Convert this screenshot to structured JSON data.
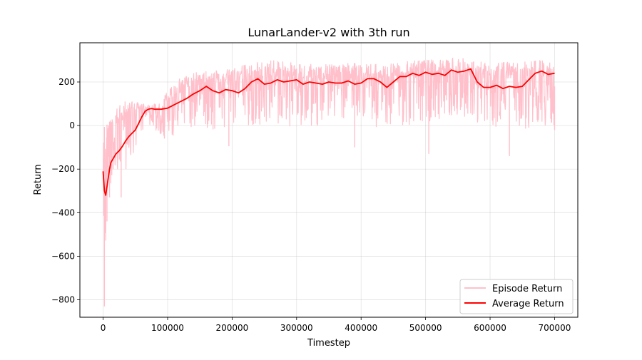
{
  "chart_data": {
    "type": "line",
    "title": "LunarLander-v2 with 3th run",
    "xlabel": "Timestep",
    "ylabel": "Return",
    "xlim": [
      -36000,
      736000
    ],
    "ylim": [
      -880,
      380
    ],
    "xticks": [
      0,
      100000,
      200000,
      300000,
      400000,
      500000,
      600000,
      700000
    ],
    "xtick_labels": [
      "0",
      "100000",
      "200000",
      "300000",
      "400000",
      "500000",
      "600000",
      "700000"
    ],
    "yticks": [
      -800,
      -600,
      -400,
      -200,
      0,
      200
    ],
    "ytick_labels": [
      "−800",
      "−600",
      "−400",
      "−200",
      "0",
      "200"
    ],
    "grid": true,
    "legend_position": "lower-right",
    "colors": {
      "episode": "#ffc0cb",
      "average": "#ff0000"
    },
    "series": [
      {
        "name": "Episode Return",
        "style": "noisy band",
        "envelope": {
          "x": [
            0,
            2000,
            5000,
            8000,
            12000,
            20000,
            30000,
            40000,
            50000,
            60000,
            75000,
            90000,
            100000,
            120000,
            150000,
            170000,
            200000,
            230000,
            260000,
            300000,
            350000,
            400000,
            440000,
            480000,
            520000,
            560000,
            600000,
            640000,
            680000,
            700000
          ],
          "upper": [
            -50,
            -10,
            0,
            20,
            40,
            80,
            100,
            130,
            110,
            100,
            95,
            110,
            160,
            220,
            250,
            250,
            260,
            290,
            300,
            290,
            280,
            290,
            280,
            300,
            310,
            310,
            300,
            290,
            300,
            300
          ],
          "lower": [
            -830,
            -700,
            -480,
            -330,
            -280,
            -250,
            -220,
            -200,
            -100,
            -30,
            0,
            -50,
            -60,
            -30,
            0,
            -20,
            0,
            0,
            -10,
            0,
            0,
            0,
            -10,
            0,
            20,
            0,
            0,
            -20,
            0,
            0
          ]
        },
        "spikes_down": [
          [
            2000,
            -830
          ],
          [
            6000,
            -440
          ],
          [
            10000,
            -330
          ],
          [
            28000,
            -330
          ],
          [
            95000,
            -60
          ],
          [
            195000,
            -95
          ],
          [
            390000,
            -100
          ],
          [
            505000,
            -130
          ],
          [
            630000,
            -140
          ],
          [
            700000,
            -20
          ]
        ]
      },
      {
        "name": "Average Return",
        "x": [
          0,
          2000,
          4000,
          6000,
          8000,
          10000,
          12000,
          14000,
          16000,
          20000,
          25000,
          30000,
          35000,
          40000,
          45000,
          50000,
          55000,
          60000,
          65000,
          70000,
          75000,
          80000,
          90000,
          100000,
          110000,
          120000,
          130000,
          140000,
          150000,
          160000,
          170000,
          180000,
          190000,
          200000,
          210000,
          220000,
          230000,
          240000,
          250000,
          260000,
          270000,
          280000,
          290000,
          300000,
          310000,
          320000,
          330000,
          340000,
          350000,
          360000,
          370000,
          380000,
          390000,
          400000,
          410000,
          420000,
          430000,
          440000,
          450000,
          460000,
          470000,
          480000,
          490000,
          500000,
          510000,
          520000,
          530000,
          540000,
          550000,
          560000,
          570000,
          580000,
          590000,
          600000,
          610000,
          620000,
          630000,
          640000,
          650000,
          660000,
          670000,
          680000,
          690000,
          700000
        ],
        "values": [
          -210,
          -300,
          -320,
          -280,
          -240,
          -200,
          -170,
          -160,
          -150,
          -130,
          -115,
          -95,
          -70,
          -50,
          -35,
          -20,
          10,
          40,
          65,
          75,
          78,
          75,
          75,
          80,
          95,
          110,
          125,
          145,
          160,
          180,
          160,
          150,
          165,
          160,
          150,
          170,
          200,
          215,
          190,
          195,
          210,
          200,
          205,
          210,
          190,
          200,
          195,
          190,
          200,
          195,
          195,
          205,
          190,
          195,
          215,
          215,
          200,
          175,
          200,
          225,
          225,
          240,
          230,
          245,
          235,
          240,
          230,
          255,
          245,
          250,
          260,
          200,
          175,
          175,
          185,
          170,
          180,
          175,
          180,
          210,
          240,
          250,
          235,
          240
        ]
      }
    ]
  }
}
